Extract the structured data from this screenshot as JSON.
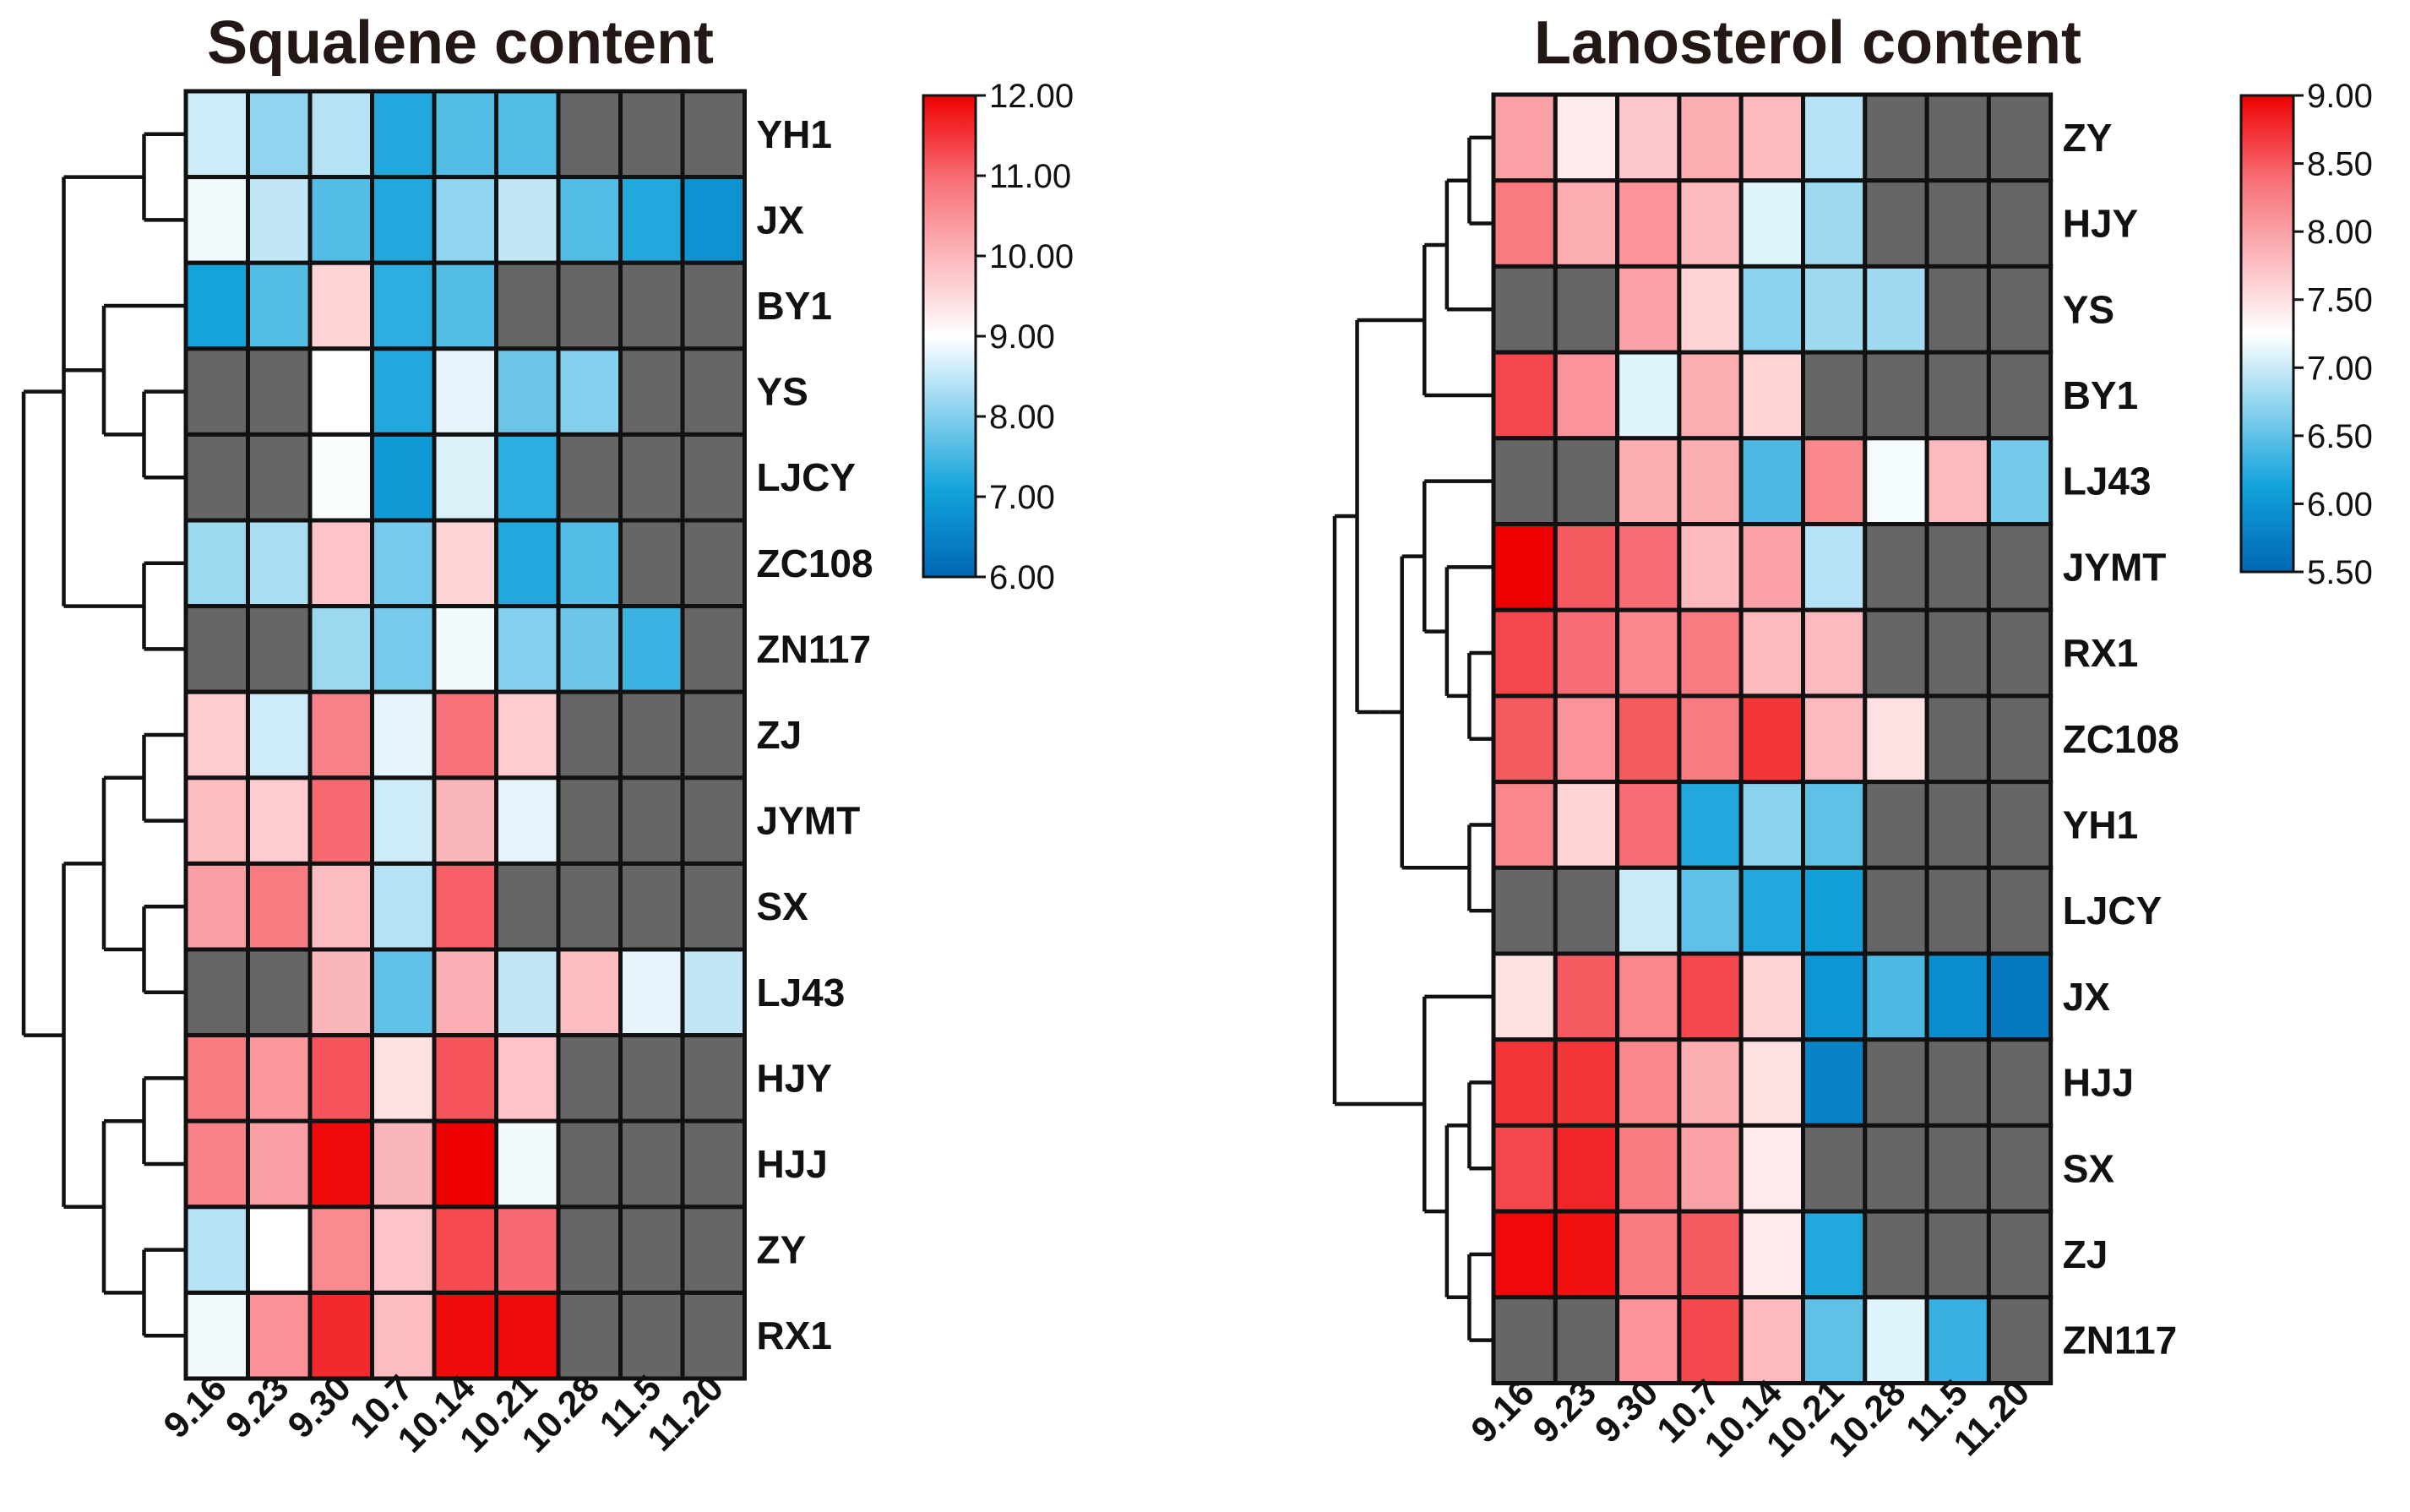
{
  "chart_data": [
    {
      "type": "heatmap",
      "title": "Squalene content",
      "columns": [
        "9.16",
        "9.23",
        "9.30",
        "10.7",
        "10.14",
        "10.21",
        "10.28",
        "11.5",
        "11.20"
      ],
      "rows": [
        "YH1",
        "JX",
        "BY1",
        "YS",
        "LJCY",
        "ZC108",
        "ZN117",
        "ZJ",
        "JYMT",
        "SX",
        "LJ43",
        "HJY",
        "HJJ",
        "ZY",
        "RX1"
      ],
      "values": [
        [
          8.6,
          8.1,
          8.4,
          7.2,
          7.6,
          7.6,
          null,
          null,
          null
        ],
        [
          8.9,
          8.5,
          7.6,
          7.2,
          8.1,
          8.5,
          7.6,
          7.2,
          6.8
        ],
        [
          7.1,
          7.6,
          9.6,
          7.3,
          7.6,
          null,
          null,
          null,
          null
        ],
        [
          null,
          null,
          9.0,
          7.2,
          8.8,
          7.8,
          8.0,
          null,
          null
        ],
        [
          null,
          null,
          8.95,
          6.9,
          8.7,
          7.3,
          null,
          null,
          null
        ],
        [
          8.2,
          8.3,
          9.8,
          7.9,
          9.6,
          7.2,
          7.6,
          null,
          null
        ],
        [
          null,
          null,
          8.2,
          7.9,
          8.9,
          8.0,
          7.8,
          7.4,
          null
        ],
        [
          9.7,
          8.6,
          10.7,
          8.8,
          10.9,
          9.7,
          null,
          null,
          null
        ],
        [
          9.9,
          9.7,
          11.0,
          8.6,
          10.0,
          8.8,
          null,
          null,
          null
        ],
        [
          10.3,
          10.8,
          9.9,
          8.4,
          11.1,
          null,
          null,
          null,
          null
        ],
        [
          null,
          null,
          10.0,
          7.7,
          10.1,
          8.5,
          9.9,
          8.8,
          8.5
        ],
        [
          10.8,
          10.4,
          11.2,
          9.4,
          11.2,
          9.8,
          null,
          null,
          null
        ],
        [
          10.7,
          10.3,
          11.9,
          10.0,
          12.0,
          8.9,
          null,
          null,
          null
        ],
        [
          8.4,
          9.0,
          10.6,
          9.8,
          11.3,
          11.0,
          null,
          null,
          null
        ],
        [
          8.9,
          10.5,
          11.6,
          9.9,
          11.9,
          11.9,
          null,
          null,
          null
        ]
      ],
      "missing_value_color": "#666666",
      "colorbar": {
        "min": 6.0,
        "max": 12.0,
        "ticks": [
          "12.00",
          "11.00",
          "10.00",
          "9.00",
          "8.00",
          "7.00",
          "6.00"
        ]
      },
      "row_dendrogram": "(((YH1,JX),(BY1,(YS,LJCY)),(ZC108,ZN117)),(((ZJ,JYMT),(SX,LJ43)),((HJY,HJJ),(ZY,RX1))))"
    },
    {
      "type": "heatmap",
      "title": "Lanosterol content",
      "columns": [
        "9.16",
        "9.23",
        "9.30",
        "10.7",
        "10.14",
        "10.21",
        "10.28",
        "11.5",
        "11.20"
      ],
      "rows": [
        "ZY",
        "HJY",
        "YS",
        "BY1",
        "LJ43",
        "JYMT",
        "RX1",
        "ZC108",
        "YH1",
        "LJCY",
        "JX",
        "HJJ",
        "SX",
        "ZJ",
        "ZN117"
      ],
      "values": [
        [
          8.0,
          7.4,
          7.7,
          7.9,
          7.8,
          6.9,
          null,
          null,
          null
        ],
        [
          8.3,
          7.9,
          8.1,
          7.8,
          7.1,
          6.8,
          null,
          null,
          null
        ],
        [
          null,
          null,
          8.0,
          7.6,
          6.7,
          6.8,
          6.8,
          null,
          null
        ],
        [
          8.6,
          8.1,
          7.1,
          7.9,
          7.6,
          null,
          null,
          null,
          null
        ],
        [
          null,
          null,
          7.9,
          7.9,
          6.4,
          8.2,
          7.2,
          7.8,
          6.6
        ],
        [
          9.0,
          8.5,
          8.4,
          7.8,
          8.0,
          6.9,
          null,
          null,
          null
        ],
        [
          8.6,
          8.4,
          8.2,
          8.3,
          7.8,
          7.8,
          null,
          null,
          null
        ],
        [
          8.5,
          8.1,
          8.5,
          8.3,
          8.7,
          7.8,
          7.5,
          null,
          null
        ],
        [
          8.2,
          7.6,
          8.4,
          6.2,
          6.7,
          6.5,
          null,
          null,
          null
        ],
        [
          null,
          null,
          7.0,
          6.5,
          6.2,
          6.1,
          null,
          null,
          null
        ],
        [
          7.5,
          8.5,
          8.2,
          8.6,
          7.6,
          6.0,
          6.4,
          5.9,
          5.7
        ],
        [
          8.7,
          8.7,
          8.2,
          7.9,
          7.5,
          5.8,
          null,
          null,
          null
        ],
        [
          8.6,
          8.8,
          8.3,
          8.0,
          7.4,
          null,
          null,
          null,
          null
        ],
        [
          8.95,
          8.9,
          8.3,
          8.5,
          7.4,
          6.2,
          null,
          null,
          null
        ],
        [
          null,
          null,
          8.1,
          8.6,
          7.8,
          6.5,
          7.1,
          6.3,
          null
        ]
      ],
      "missing_value_color": "#666666",
      "colorbar": {
        "min": 5.5,
        "max": 9.0,
        "ticks": [
          "9.00",
          "8.50",
          "8.00",
          "7.50",
          "7.00",
          "6.50",
          "6.00",
          "5.50"
        ]
      },
      "row_dendrogram": "(((((ZY,HJY),YS),BY1),(((LJ43,(JYMT,(RX1,ZC108))),(YH1,LJCY)))),(JX,((HJJ,SX),(ZJ,ZN117))))"
    }
  ]
}
